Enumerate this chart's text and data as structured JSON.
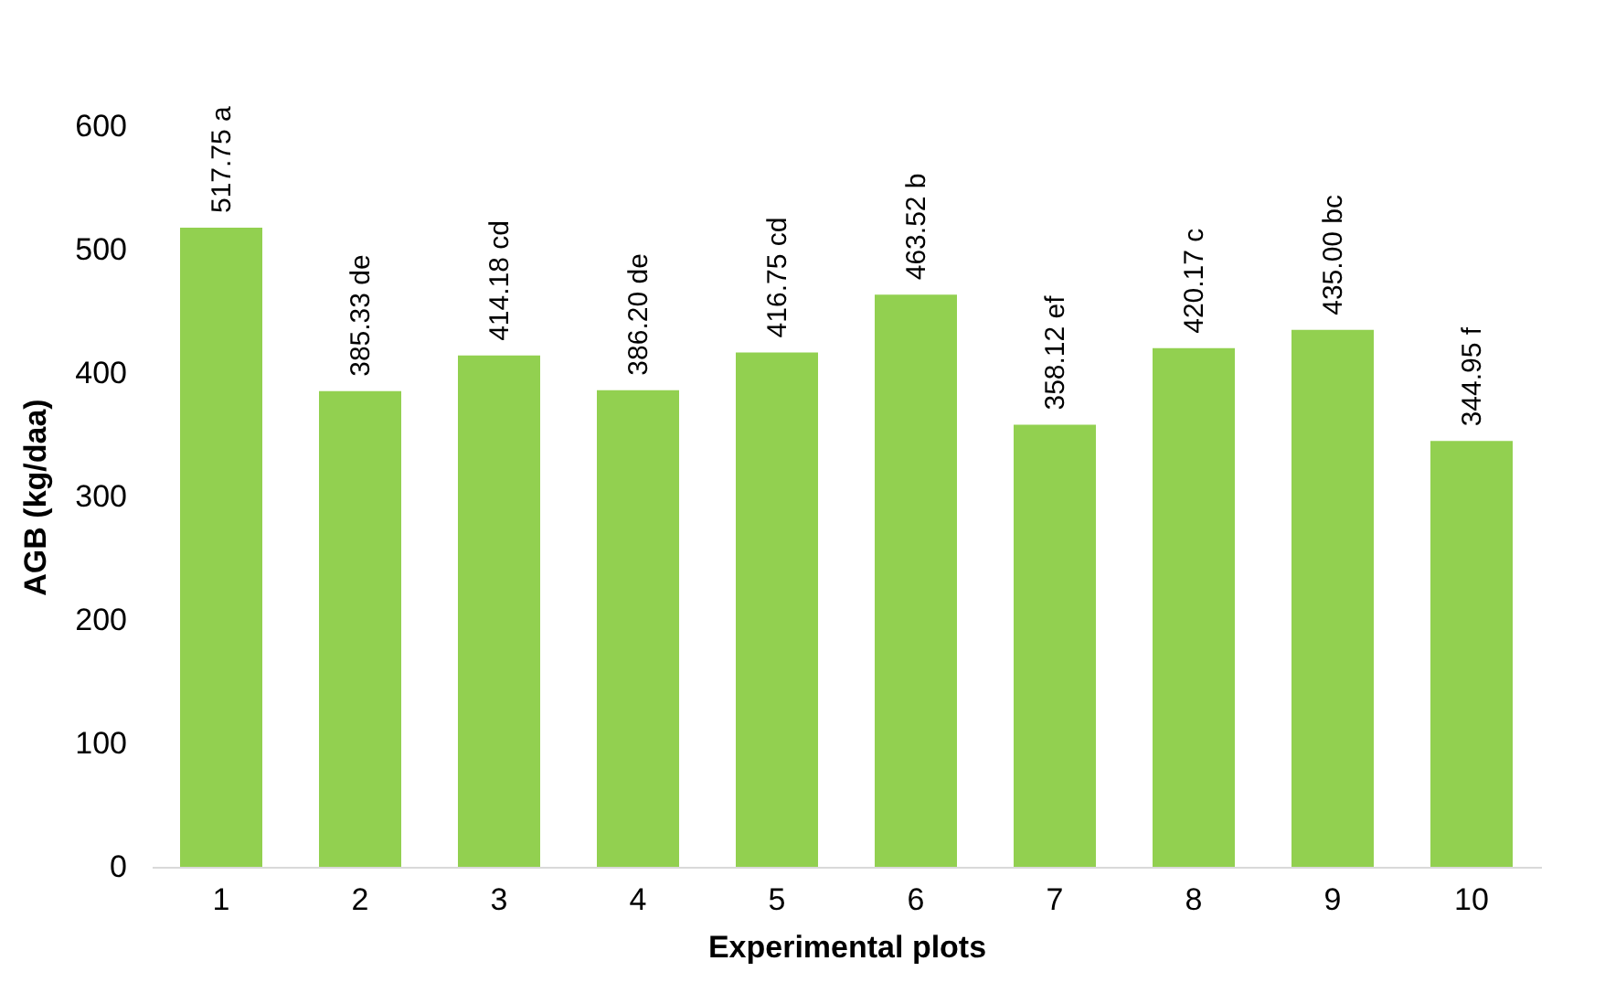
{
  "chart_data": {
    "type": "bar",
    "xlabel": "Experimental plots",
    "ylabel": "AGB (kg/daa)",
    "categories": [
      "1",
      "2",
      "3",
      "4",
      "5",
      "6",
      "7",
      "8",
      "9",
      "10"
    ],
    "values": [
      517.75,
      385.33,
      414.18,
      386.2,
      416.75,
      463.52,
      358.12,
      420.17,
      435.0,
      344.95
    ],
    "value_labels": [
      "517.75 a",
      "385.33 de",
      "414.18 cd",
      "386.20 de",
      "416.75 cd",
      "463.52 b",
      "358.12 ef",
      "420.17 c",
      "435.00 bc",
      "344.95 f"
    ],
    "color": "#92d050",
    "ylim": [
      0,
      600
    ],
    "yticks": [
      0,
      100,
      200,
      300,
      400,
      500,
      600
    ],
    "grid": false
  }
}
